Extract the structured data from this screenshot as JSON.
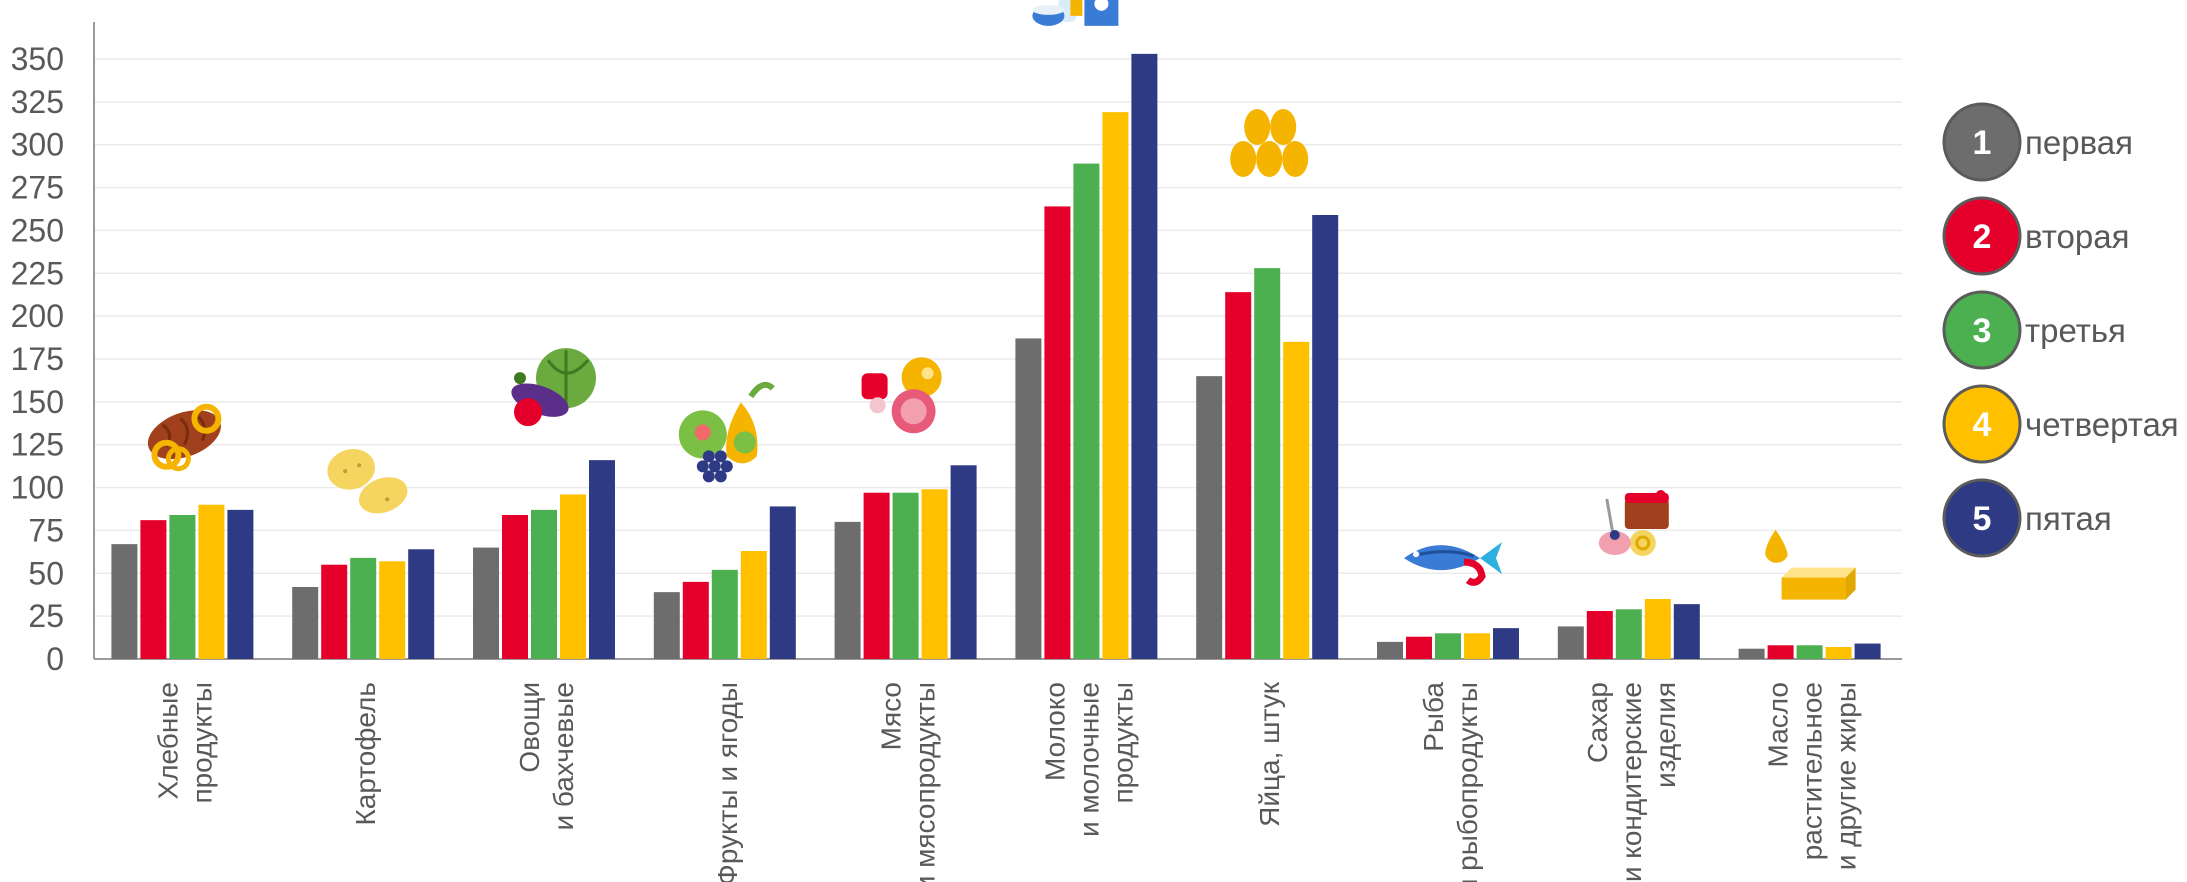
{
  "chart_data": {
    "type": "bar",
    "categories": [
      [
        "Хлебные",
        "продукты"
      ],
      [
        "Картофель"
      ],
      [
        "Овощи",
        "и бахчевые"
      ],
      [
        "Фрукты и ягоды"
      ],
      [
        "Мясо",
        "и мясопродукты"
      ],
      [
        "Молоко",
        "и молочные",
        "продукты"
      ],
      [
        "Яйца, штук"
      ],
      [
        "Рыба",
        "и рыбопродукты"
      ],
      [
        "Сахар",
        "и кондитерские",
        "изделия"
      ],
      [
        "Масло",
        "растительное",
        "и другие жиры"
      ]
    ],
    "series": [
      {
        "name": "первая",
        "number": "1",
        "color": "#6d6d6d",
        "values": [
          67,
          42,
          65,
          39,
          80,
          187,
          165,
          10,
          19,
          6
        ]
      },
      {
        "name": "вторая",
        "number": "2",
        "color": "#e4002b",
        "values": [
          81,
          55,
          84,
          45,
          97,
          264,
          214,
          13,
          28,
          8
        ]
      },
      {
        "name": "третья",
        "number": "3",
        "color": "#4caf50",
        "values": [
          84,
          59,
          87,
          52,
          97,
          289,
          228,
          15,
          29,
          8
        ]
      },
      {
        "name": "четвертая",
        "number": "4",
        "color": "#ffc000",
        "values": [
          90,
          57,
          96,
          63,
          99,
          319,
          185,
          15,
          35,
          7
        ]
      },
      {
        "name": "пятая",
        "number": "5",
        "color": "#2e3b84",
        "values": [
          87,
          64,
          116,
          89,
          113,
          353,
          259,
          18,
          32,
          9
        ]
      }
    ],
    "ylim": [
      0,
      350
    ],
    "yticks": [
      0,
      25,
      50,
      75,
      100,
      125,
      150,
      175,
      200,
      225,
      250,
      275,
      300,
      325,
      350
    ],
    "grid": true,
    "legend_position": "right",
    "icons": [
      "bread-icon",
      "potato-icon",
      "vegetables-icon",
      "fruits-icon",
      "meat-icon",
      "milk-icon",
      "eggs-icon",
      "fish-icon",
      "sweets-icon",
      "oil-icon"
    ]
  }
}
